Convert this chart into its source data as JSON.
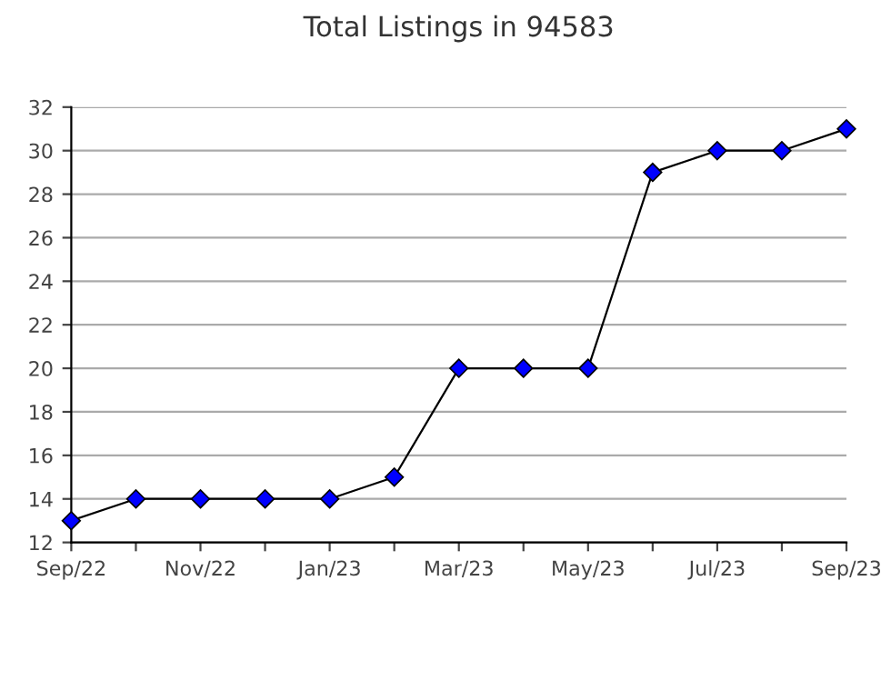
{
  "chart_data": {
    "type": "line",
    "title": "Total Listings in 94583",
    "categories": [
      "Sep/22",
      null,
      "Nov/22",
      null,
      "Jan/23",
      null,
      "Mar/23",
      null,
      "May/23",
      null,
      "Jul/23",
      null,
      "Sep/23"
    ],
    "series": [
      {
        "color": "#0000ff",
        "values": [
          13,
          14,
          14,
          14,
          14,
          15,
          20,
          20,
          20,
          29,
          30,
          30,
          31
        ]
      }
    ],
    "ylim": [
      12,
      32
    ],
    "yticks": [
      12,
      14,
      16,
      18,
      20,
      22,
      24,
      26,
      28,
      30,
      32
    ],
    "grid": "y",
    "marker": "diamond",
    "line_style": "solid"
  }
}
